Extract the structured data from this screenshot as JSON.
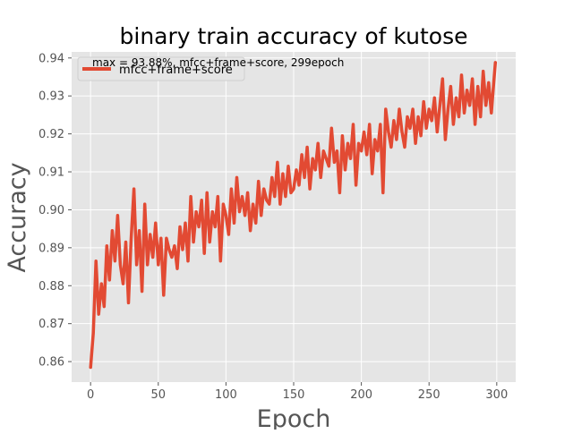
{
  "chart_data": {
    "type": "line",
    "title": "binary train accuracy of kutose",
    "xlabel": "Epoch",
    "ylabel": "Accuracy",
    "xlim": [
      -14,
      314
    ],
    "ylim": [
      0.8546,
      0.9416
    ],
    "xticks": [
      0,
      50,
      100,
      150,
      200,
      250,
      300
    ],
    "yticks": [
      0.86,
      0.87,
      0.88,
      0.89,
      0.9,
      0.91,
      0.92,
      0.93,
      0.94
    ],
    "ytick_labels": [
      "0.86",
      "0.87",
      "0.88",
      "0.89",
      "0.90",
      "0.91",
      "0.92",
      "0.93",
      "0.94"
    ],
    "grid": true,
    "legend": {
      "position": "top-left",
      "entries": [
        "mfcc+frame+score"
      ]
    },
    "annotation": "max = 93.88%, mfcc+frame+score, 299epoch",
    "colors": {
      "series": "#E24A33",
      "plot_bg": "#E5E5E5",
      "grid": "#FFFFFF",
      "text": "#555555"
    },
    "series": [
      {
        "name": "mfcc+frame+score",
        "color": "#E24A33",
        "x": [
          0,
          2,
          4,
          6,
          8,
          10,
          12,
          14,
          16,
          18,
          20,
          22,
          24,
          26,
          28,
          30,
          32,
          34,
          36,
          38,
          40,
          42,
          44,
          46,
          48,
          50,
          52,
          54,
          56,
          58,
          60,
          62,
          64,
          66,
          68,
          70,
          72,
          74,
          76,
          78,
          80,
          82,
          84,
          86,
          88,
          90,
          92,
          94,
          96,
          98,
          100,
          102,
          104,
          106,
          108,
          110,
          112,
          114,
          116,
          118,
          120,
          122,
          124,
          126,
          128,
          130,
          132,
          134,
          136,
          138,
          140,
          142,
          144,
          146,
          148,
          150,
          152,
          154,
          156,
          158,
          160,
          162,
          164,
          166,
          168,
          170,
          172,
          174,
          176,
          178,
          180,
          182,
          184,
          186,
          188,
          190,
          192,
          194,
          196,
          198,
          200,
          202,
          204,
          206,
          208,
          210,
          212,
          214,
          216,
          218,
          220,
          222,
          224,
          226,
          228,
          230,
          232,
          234,
          236,
          238,
          240,
          242,
          244,
          246,
          248,
          250,
          252,
          254,
          256,
          258,
          260,
          262,
          264,
          266,
          268,
          270,
          272,
          274,
          276,
          278,
          280,
          282,
          284,
          286,
          288,
          290,
          292,
          294,
          296,
          298,
          299
        ],
        "y": [
          0.8585,
          0.8675,
          0.8865,
          0.8725,
          0.8805,
          0.8745,
          0.8905,
          0.8815,
          0.8945,
          0.8865,
          0.8985,
          0.8855,
          0.8805,
          0.8915,
          0.8755,
          0.8925,
          0.9055,
          0.8855,
          0.8945,
          0.8785,
          0.9015,
          0.8855,
          0.8935,
          0.8875,
          0.8965,
          0.8855,
          0.8925,
          0.8775,
          0.8925,
          0.8895,
          0.8875,
          0.8905,
          0.8845,
          0.8955,
          0.8895,
          0.8965,
          0.8865,
          0.9035,
          0.8915,
          0.8995,
          0.8955,
          0.9025,
          0.8885,
          0.9045,
          0.8915,
          0.8995,
          0.8955,
          0.9035,
          0.8865,
          0.9015,
          0.8985,
          0.8935,
          0.9055,
          0.8965,
          0.9085,
          0.8995,
          0.9035,
          0.8985,
          0.9045,
          0.8945,
          0.9015,
          0.8965,
          0.9075,
          0.8985,
          0.9055,
          0.9025,
          0.9015,
          0.9085,
          0.9035,
          0.9125,
          0.9015,
          0.9095,
          0.9035,
          0.9115,
          0.9045,
          0.9055,
          0.9105,
          0.9065,
          0.9145,
          0.9085,
          0.9165,
          0.9055,
          0.9135,
          0.9105,
          0.9175,
          0.9085,
          0.9155,
          0.9135,
          0.9115,
          0.9215,
          0.9125,
          0.9155,
          0.9045,
          0.9195,
          0.9105,
          0.9175,
          0.9135,
          0.9225,
          0.9065,
          0.9175,
          0.9155,
          0.9205,
          0.9145,
          0.9225,
          0.9095,
          0.9185,
          0.9155,
          0.9225,
          0.9045,
          0.9265,
          0.9205,
          0.9165,
          0.9235,
          0.9185,
          0.9265,
          0.9205,
          0.9165,
          0.9245,
          0.9215,
          0.9265,
          0.9175,
          0.9245,
          0.9195,
          0.9285,
          0.9215,
          0.9265,
          0.9235,
          0.9295,
          0.9205,
          0.9275,
          0.9345,
          0.9185,
          0.9265,
          0.9325,
          0.9225,
          0.9295,
          0.9245,
          0.9355,
          0.9255,
          0.9315,
          0.9275,
          0.9345,
          0.9225,
          0.9325,
          0.9245,
          0.9365,
          0.9275,
          0.9335,
          0.9255,
          0.9345,
          0.9388
        ]
      }
    ]
  }
}
